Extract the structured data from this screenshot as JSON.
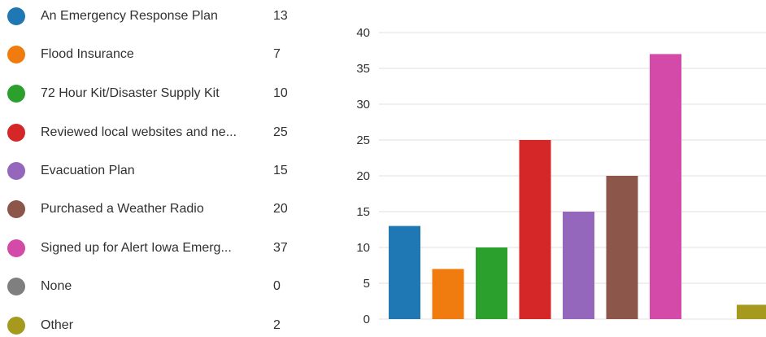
{
  "legend": [
    {
      "label": "An Emergency Response Plan",
      "count": "13",
      "color": "#1f77b4"
    },
    {
      "label": "Flood Insurance",
      "count": "7",
      "color": "#f07b0f"
    },
    {
      "label": "72 Hour Kit/Disaster Supply Kit",
      "count": "10",
      "color": "#2ca02c"
    },
    {
      "label": "Reviewed local websites and ne...",
      "count": "25",
      "color": "#d62728"
    },
    {
      "label": "Evacuation Plan",
      "count": "15",
      "color": "#9467bd"
    },
    {
      "label": "Purchased a Weather Radio",
      "count": "20",
      "color": "#8c564b"
    },
    {
      "label": "Signed up for Alert Iowa Emerg...",
      "count": "37",
      "color": "#d44aa8"
    },
    {
      "label": "None",
      "count": "0",
      "color": "#7f7f7f"
    },
    {
      "label": "Other",
      "count": "2",
      "color": "#a69a1e"
    }
  ],
  "chart_data": {
    "type": "bar",
    "categories": [
      "An Emergency Response Plan",
      "Flood Insurance",
      "72 Hour Kit/Disaster Supply Kit",
      "Reviewed local websites and ne...",
      "Evacuation Plan",
      "Purchased a Weather Radio",
      "Signed up for Alert Iowa Emerg...",
      "None",
      "Other"
    ],
    "values": [
      13,
      7,
      10,
      25,
      15,
      20,
      37,
      0,
      2
    ],
    "colors": [
      "#1f77b4",
      "#f07b0f",
      "#2ca02c",
      "#d62728",
      "#9467bd",
      "#8c564b",
      "#d44aa8",
      "#7f7f7f",
      "#a69a1e"
    ],
    "ylim": [
      0,
      40
    ],
    "yticks": [
      "0",
      "5",
      "10",
      "15",
      "20",
      "25",
      "30",
      "35",
      "40"
    ],
    "grid": true,
    "legend_position": "left"
  }
}
